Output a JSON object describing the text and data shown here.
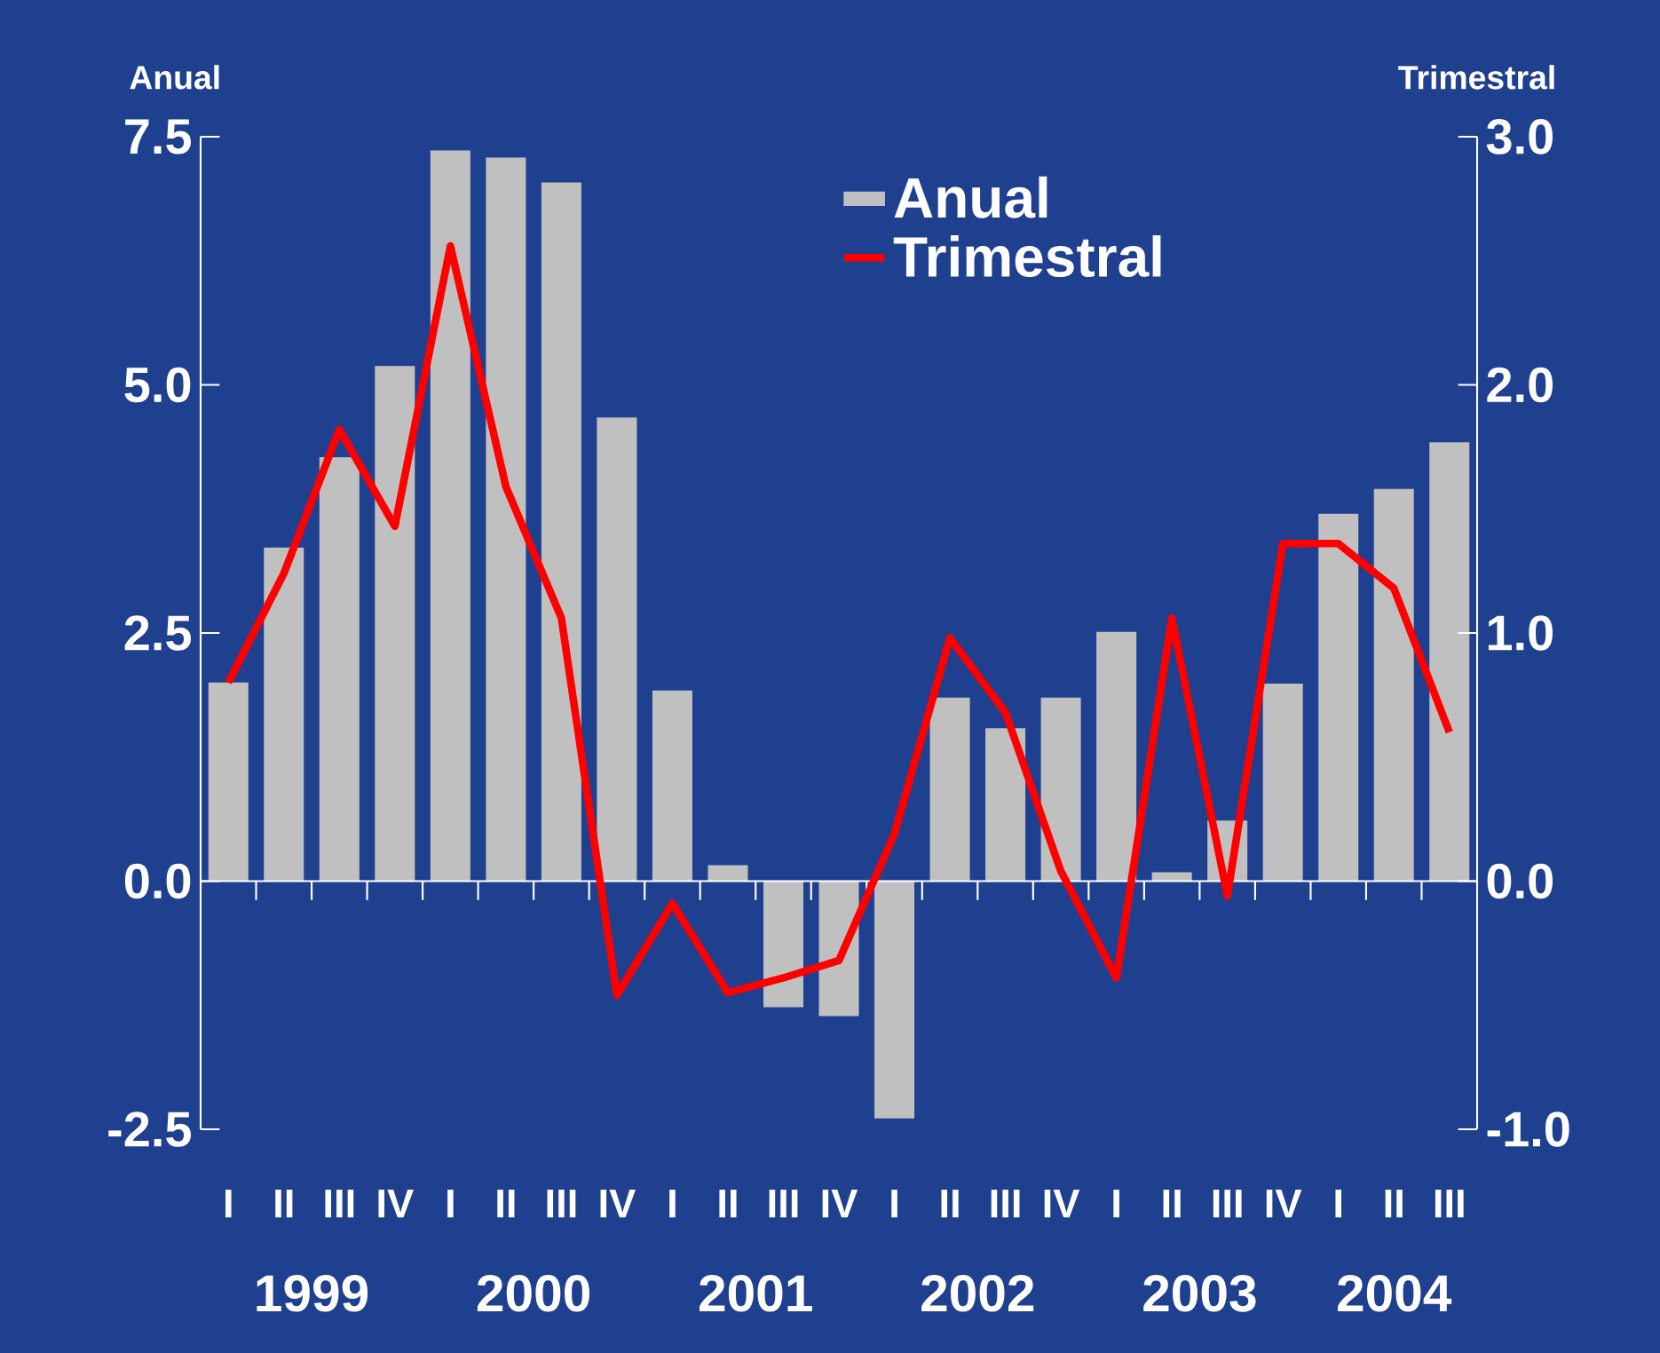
{
  "chart_data": {
    "type": "bar",
    "ylabel": "Anual",
    "y2label": "Trimestral",
    "categories": [
      "I",
      "II",
      "III",
      "IV",
      "I",
      "II",
      "III",
      "IV",
      "I",
      "II",
      "III",
      "IV",
      "I",
      "II",
      "III",
      "IV",
      "I",
      "II",
      "III",
      "IV",
      "I",
      "II",
      "III"
    ],
    "series": [
      {
        "name": "Anual",
        "color": "#c0c0c0",
        "values": [
          2.0,
          3.36,
          4.27,
          5.19,
          7.36,
          7.29,
          7.04,
          4.67,
          1.92,
          0.16,
          -1.27,
          -1.36,
          -2.39,
          1.85,
          1.54,
          1.85,
          2.51,
          0.09,
          0.61,
          1.99,
          3.7,
          3.95,
          4.42
        ]
      },
      {
        "name": "Trimestral",
        "type": "line",
        "axis": "y2",
        "color": "#ff0000",
        "values": [
          0.8,
          1.24,
          1.82,
          1.43,
          2.56,
          1.59,
          1.06,
          -0.46,
          -0.09,
          -0.45,
          -0.39,
          -0.32,
          0.19,
          0.98,
          0.68,
          0.04,
          -0.39,
          1.06,
          -0.06,
          1.36,
          1.36,
          1.18,
          0.6
        ]
      }
    ],
    "ylim": [
      -2.5,
      7.5
    ],
    "yticks": [
      {
        "value": -2.5,
        "label": "-2.5"
      },
      {
        "value": 0,
        "label": "0.0"
      },
      {
        "value": 2.5,
        "label": "2.5"
      },
      {
        "value": 5,
        "label": "5.0"
      },
      {
        "value": 7.5,
        "label": "7.5"
      }
    ],
    "y2lim": [
      -1,
      3
    ],
    "y2ticks": [
      {
        "value": -1,
        "label": "-1.0"
      },
      {
        "value": 0,
        "label": "0.0"
      },
      {
        "value": 1,
        "label": "1.0"
      },
      {
        "value": 2,
        "label": "2.0"
      },
      {
        "value": 3,
        "label": "3.0"
      }
    ],
    "annotations": [
      "1999",
      "2000",
      "2001",
      "2002",
      "2003",
      "2004"
    ],
    "legend": "top"
  }
}
